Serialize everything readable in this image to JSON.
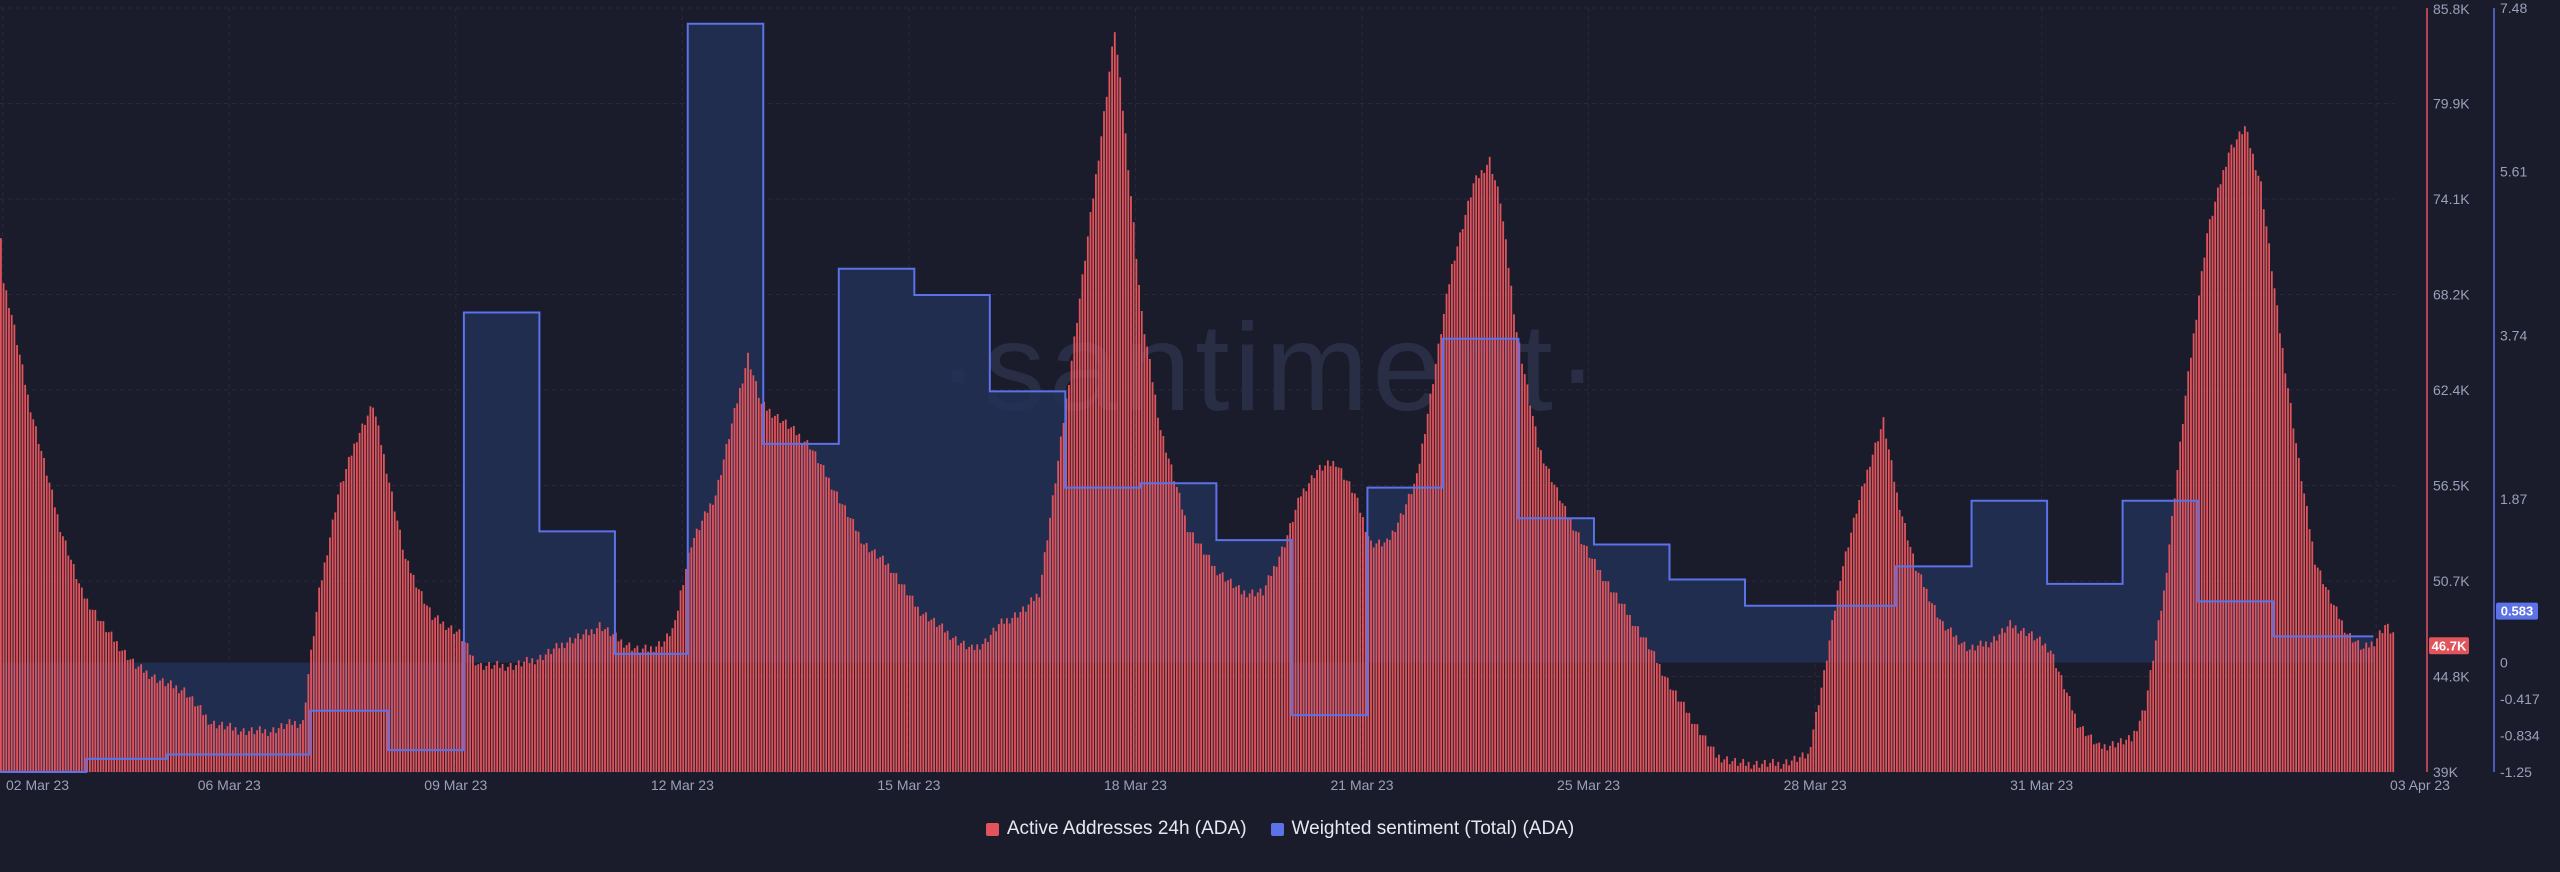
{
  "chart_data": {
    "type": "bar+line",
    "x_ticks": [
      "02 Mar 23",
      "06 Mar 23",
      "09 Mar 23",
      "12 Mar 23",
      "15 Mar 23",
      "18 Mar 23",
      "21 Mar 23",
      "25 Mar 23",
      "28 Mar 23",
      "31 Mar 23",
      "03 Apr 23"
    ],
    "watermark": "·santiment·",
    "legend_position": "bottom-center",
    "grid": true,
    "x_range": [
      "2023-03-02",
      "2023-04-03"
    ],
    "series": [
      {
        "name": "Active Addresses 24h (ADA)",
        "type": "bar",
        "axis": "right-outer",
        "color": "#e2545b",
        "last_value_label": "46.7K",
        "hourly_keypoints": [
          [
            0,
            72000
          ],
          [
            1,
            69000
          ],
          [
            4,
            67000
          ],
          [
            10,
            62000
          ],
          [
            16,
            58000
          ],
          [
            22,
            54000
          ],
          [
            30,
            50000
          ],
          [
            40,
            47500
          ],
          [
            50,
            45500
          ],
          [
            60,
            44500
          ],
          [
            68,
            44000
          ],
          [
            78,
            42000
          ],
          [
            90,
            41500
          ],
          [
            100,
            41500
          ],
          [
            108,
            42000
          ],
          [
            112,
            42000
          ],
          [
            114,
            45000
          ],
          [
            118,
            50000
          ],
          [
            125,
            56000
          ],
          [
            132,
            59500
          ],
          [
            138,
            61500
          ],
          [
            145,
            56000
          ],
          [
            150,
            52000
          ],
          [
            160,
            48500
          ],
          [
            170,
            47500
          ],
          [
            175,
            46000
          ],
          [
            178,
            45500
          ],
          [
            182,
            45500
          ],
          [
            190,
            45500
          ],
          [
            200,
            46000
          ],
          [
            210,
            47000
          ],
          [
            218,
            47500
          ],
          [
            222,
            48000
          ],
          [
            230,
            47000
          ],
          [
            236,
            46500
          ],
          [
            240,
            46500
          ],
          [
            246,
            47000
          ],
          [
            250,
            48000
          ],
          [
            252,
            50000
          ],
          [
            256,
            53000
          ],
          [
            265,
            56000
          ],
          [
            272,
            61000
          ],
          [
            277,
            64500
          ],
          [
            282,
            61500
          ],
          [
            290,
            60500
          ],
          [
            300,
            59000
          ],
          [
            310,
            56000
          ],
          [
            320,
            53000
          ],
          [
            330,
            51500
          ],
          [
            340,
            49000
          ],
          [
            355,
            47000
          ],
          [
            360,
            46500
          ],
          [
            365,
            47000
          ],
          [
            370,
            48000
          ],
          [
            380,
            49000
          ],
          [
            385,
            50000
          ],
          [
            392,
            58000
          ],
          [
            400,
            68000
          ],
          [
            408,
            78000
          ],
          [
            413,
            84500
          ],
          [
            417,
            78000
          ],
          [
            423,
            67000
          ],
          [
            430,
            60000
          ],
          [
            440,
            54000
          ],
          [
            450,
            51500
          ],
          [
            460,
            50000
          ],
          [
            468,
            50000
          ],
          [
            476,
            53000
          ],
          [
            482,
            56000
          ],
          [
            488,
            57500
          ],
          [
            495,
            58000
          ],
          [
            502,
            56000
          ],
          [
            508,
            53000
          ],
          [
            514,
            53000
          ],
          [
            520,
            55000
          ],
          [
            525,
            57000
          ],
          [
            530,
            62000
          ],
          [
            538,
            70000
          ],
          [
            546,
            75000
          ],
          [
            552,
            76500
          ],
          [
            556,
            74000
          ],
          [
            562,
            66000
          ],
          [
            570,
            59000
          ],
          [
            580,
            55000
          ],
          [
            590,
            52000
          ],
          [
            600,
            49500
          ],
          [
            610,
            47000
          ],
          [
            620,
            44000
          ],
          [
            630,
            41500
          ],
          [
            636,
            40000
          ],
          [
            645,
            39500
          ],
          [
            660,
            39500
          ],
          [
            670,
            40000
          ],
          [
            676,
            45000
          ],
          [
            682,
            51000
          ],
          [
            688,
            55000
          ],
          [
            693,
            58000
          ],
          [
            698,
            60500
          ],
          [
            703,
            56000
          ],
          [
            710,
            51500
          ],
          [
            720,
            48000
          ],
          [
            730,
            46500
          ],
          [
            738,
            47000
          ],
          [
            745,
            48000
          ],
          [
            752,
            47500
          ],
          [
            760,
            46500
          ],
          [
            770,
            42000
          ],
          [
            778,
            40500
          ],
          [
            790,
            41000
          ],
          [
            795,
            43000
          ],
          [
            802,
            50000
          ],
          [
            810,
            62000
          ],
          [
            818,
            72000
          ],
          [
            826,
            77000
          ],
          [
            832,
            78500
          ],
          [
            838,
            75000
          ],
          [
            845,
            66000
          ],
          [
            852,
            58000
          ],
          [
            858,
            52000
          ],
          [
            864,
            49500
          ],
          [
            870,
            47500
          ],
          [
            876,
            46500
          ],
          [
            880,
            47000
          ],
          [
            884,
            48000
          ],
          [
            887,
            47500
          ]
        ]
      },
      {
        "name": "Weighted sentiment (Total) (ADA)",
        "type": "area-step",
        "axis": "right-inner",
        "color": "#5b72e8",
        "last_value_label": "0.583",
        "steps": [
          [
            0,
            -1.25
          ],
          [
            32,
            -1.1
          ],
          [
            62,
            -1.05
          ],
          [
            115,
            -0.55
          ],
          [
            144,
            -1.0
          ],
          [
            172,
            4.0
          ],
          [
            200,
            1.5
          ],
          [
            228,
            0.1
          ],
          [
            255,
            7.3
          ],
          [
            283,
            2.5
          ],
          [
            311,
            4.5
          ],
          [
            339,
            4.2
          ],
          [
            367,
            3.1
          ],
          [
            395,
            2.0
          ],
          [
            423,
            2.05
          ],
          [
            451,
            1.4
          ],
          [
            479,
            -0.6
          ],
          [
            507,
            2.0
          ],
          [
            535,
            3.7
          ],
          [
            563,
            1.65
          ],
          [
            591,
            1.35
          ],
          [
            619,
            0.95
          ],
          [
            647,
            0.65
          ],
          [
            675,
            0.65
          ],
          [
            703,
            1.1
          ],
          [
            731,
            1.85
          ],
          [
            759,
            0.9
          ],
          [
            787,
            1.85
          ],
          [
            815,
            0.7
          ],
          [
            843,
            0.3
          ],
          [
            871,
            0.3
          ]
        ]
      }
    ],
    "axes": [
      {
        "id": "right-outer",
        "series": "Active Addresses 24h (ADA)",
        "min": 39000,
        "max": 85800,
        "tick_labels": [
          "85.8K",
          "79.9K",
          "74.1K",
          "68.2K",
          "62.4K",
          "56.5K",
          "50.7K",
          "44.8K",
          "39K"
        ]
      },
      {
        "id": "right-inner",
        "series": "Weighted sentiment (Total) (ADA)",
        "min": -1.25,
        "max": 7.48,
        "tick_labels": [
          "7.48",
          "5.61",
          "3.74",
          "1.87",
          "0",
          "-0.417",
          "-0.834",
          "-1.25"
        ]
      }
    ]
  }
}
